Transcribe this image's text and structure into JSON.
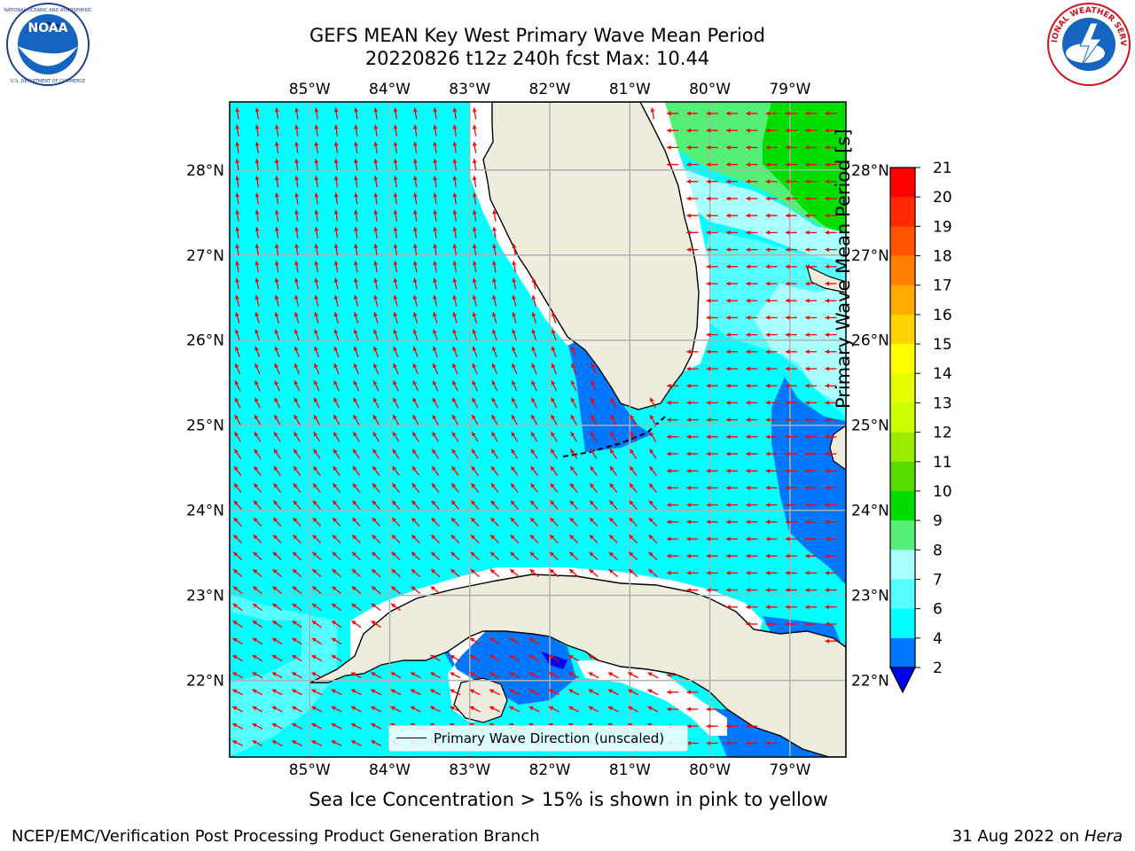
{
  "header": {
    "title_line1": "GEFS MEAN Key West Primary Wave Mean Period",
    "title_line2": "20220826 t12z 240h fcst   Max: 10.44"
  },
  "logos": {
    "left": "NOAA",
    "right": "NATIONAL WEATHER SERVICE"
  },
  "map": {
    "lon_labels": [
      "85°W",
      "84°W",
      "83°W",
      "82°W",
      "81°W",
      "80°W",
      "79°W"
    ],
    "lat_labels": [
      "28°N",
      "27°N",
      "26°N",
      "25°N",
      "24°N",
      "23°N",
      "22°N"
    ],
    "extent": {
      "lon_min": -86.0,
      "lon_max": -78.3,
      "lat_min": 21.1,
      "lat_max": 28.8
    },
    "legend_label": "Primary Wave Direction (unscaled)",
    "gridlines": true
  },
  "colorbar": {
    "title": "Primary Wave Mean Period [s]",
    "ticks": [
      "21",
      "20",
      "19",
      "18",
      "17",
      "16",
      "15",
      "14",
      "13",
      "12",
      "11",
      "10",
      "9",
      "8",
      "7",
      "6",
      "4",
      "2"
    ],
    "colors": [
      "#ff0000",
      "#ff2a00",
      "#ff5500",
      "#ff8000",
      "#ffaa00",
      "#ffd400",
      "#ffff00",
      "#e6ff00",
      "#ccff00",
      "#99ee00",
      "#55dd00",
      "#00dd00",
      "#55ee77",
      "#aaffff",
      "#55ffff",
      "#00ffff",
      "#0077ff",
      "#0000ee"
    ]
  },
  "bottom_note": "Sea Ice Concentration > 15% is shown in pink to yellow",
  "footer": {
    "left": "NCEP/EMC/Verification Post Processing Product Generation Branch",
    "date": "31 Aug 2022 on",
    "machine": "Hera"
  },
  "colors": {
    "land": "#eeecdc",
    "ocean_base": "#00ffff",
    "grid": "#b0b0b0",
    "arrow": "#ff0000"
  }
}
